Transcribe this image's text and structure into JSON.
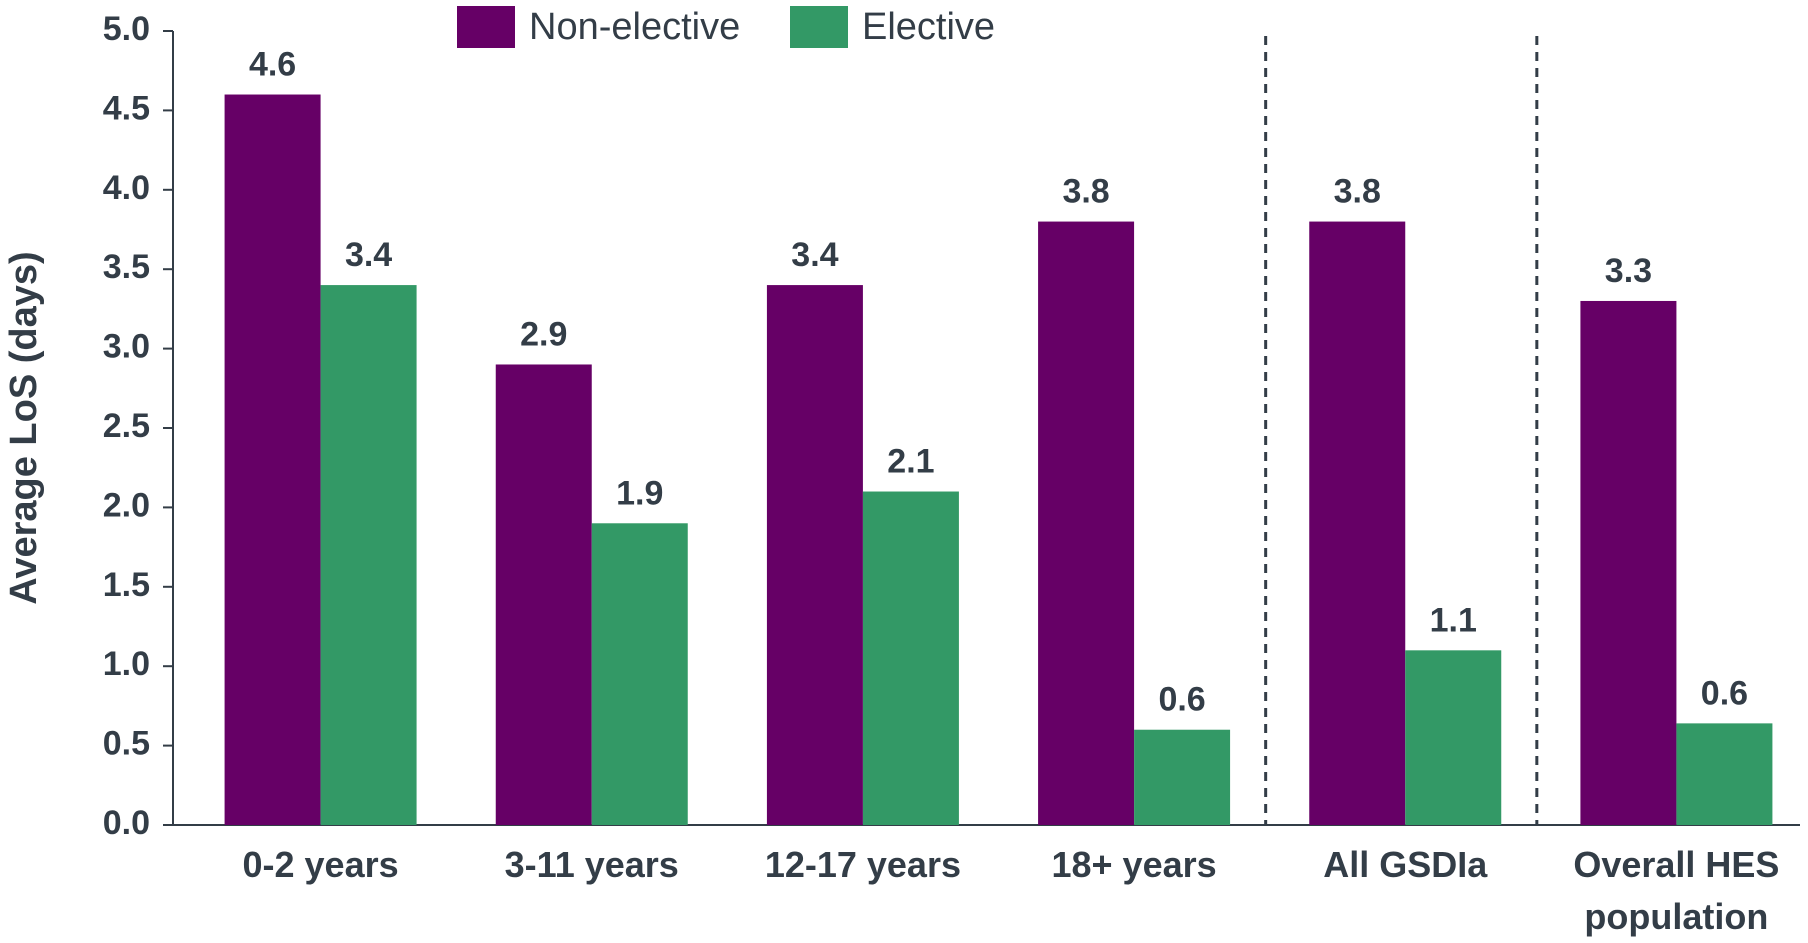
{
  "chart_data": {
    "type": "bar",
    "y_label": "Average LoS (days)",
    "categories": [
      "0-2 years",
      "3-11 years",
      "12-17 years",
      "18+ years",
      "All GSDIa",
      "Overall HES population"
    ],
    "series": [
      {
        "name": "Non-elective",
        "color": "#660066",
        "values": [
          4.6,
          2.9,
          3.4,
          3.8,
          3.8,
          3.3
        ]
      },
      {
        "name": "Elective",
        "color": "#339966",
        "values": [
          3.4,
          1.9,
          2.1,
          0.6,
          1.1,
          0.64
        ],
        "value_labels": [
          "3.4",
          "1.9",
          "2.1",
          "0.6",
          "1.1",
          "0.6"
        ]
      }
    ],
    "ylim": [
      0,
      5
    ],
    "yticks": [
      {
        "value": 0,
        "label": "0.0"
      },
      0.5,
      {
        "value": 1,
        "label": "1.0"
      },
      1.5,
      {
        "value": 2,
        "label": "2.0"
      },
      2.5,
      {
        "value": 3,
        "label": "3.0"
      },
      3.5,
      {
        "value": 4,
        "label": "4.0"
      },
      4.5,
      {
        "value": 5,
        "label": "5.0"
      }
    ],
    "grid": false,
    "legend": "top"
  }
}
